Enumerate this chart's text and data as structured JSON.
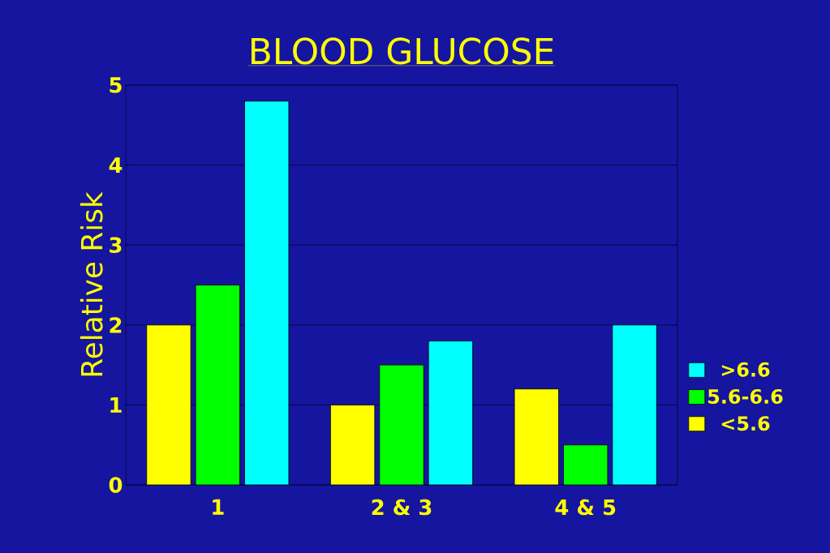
{
  "chart_data": {
    "type": "bar",
    "title": "BLOOD GLUCOSE",
    "ylabel": "Relative Risk",
    "categories": [
      "1",
      "2 & 3",
      "4 & 5"
    ],
    "series": [
      {
        "name": "<5.6",
        "color": "#ffff00",
        "values": [
          2.0,
          1.0,
          1.2
        ]
      },
      {
        "name": "5.6-6.6",
        "color": "#00ff00",
        "values": [
          2.5,
          1.5,
          0.5
        ]
      },
      {
        "name": ">6.6",
        "color": "#00ffff",
        "values": [
          4.8,
          1.8,
          2.0
        ]
      }
    ],
    "ylim": [
      0,
      5
    ],
    "yticks": [
      0,
      1,
      2,
      3,
      4,
      5
    ],
    "grid": "y",
    "legend": "right"
  }
}
